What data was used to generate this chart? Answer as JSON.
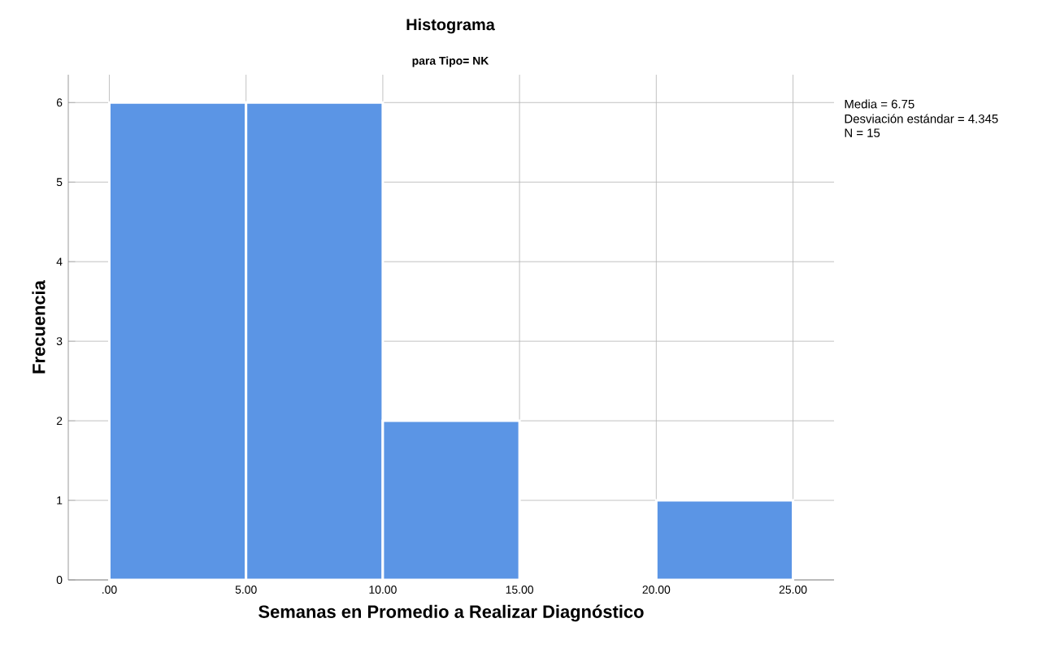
{
  "chart_data": {
    "type": "histogram",
    "title": "Histograma",
    "subtitle": "para Tipo= NK",
    "xlabel": "Semanas en Promedio a Realizar Diagnóstico",
    "ylabel": "Frecuencia",
    "bins": [
      0,
      5,
      10,
      15,
      20,
      25
    ],
    "values": [
      6,
      6,
      2,
      0,
      1
    ],
    "color": "#5b95e5",
    "xlim": [
      -1.5,
      26.5
    ],
    "ylim": [
      0,
      6.35
    ],
    "xticks": [
      {
        "value": 0,
        "label": ".00"
      },
      {
        "value": 5,
        "label": "5.00"
      },
      {
        "value": 10,
        "label": "10.00"
      },
      {
        "value": 15,
        "label": "15.00"
      },
      {
        "value": 20,
        "label": "20.00"
      },
      {
        "value": 25,
        "label": "25.00"
      }
    ],
    "yticks": [
      0,
      1,
      2,
      3,
      4,
      5,
      6
    ],
    "grid": true,
    "annotations": [
      "Media = 6.75",
      "Desviación estándar = 4.345",
      "N = 15"
    ]
  }
}
